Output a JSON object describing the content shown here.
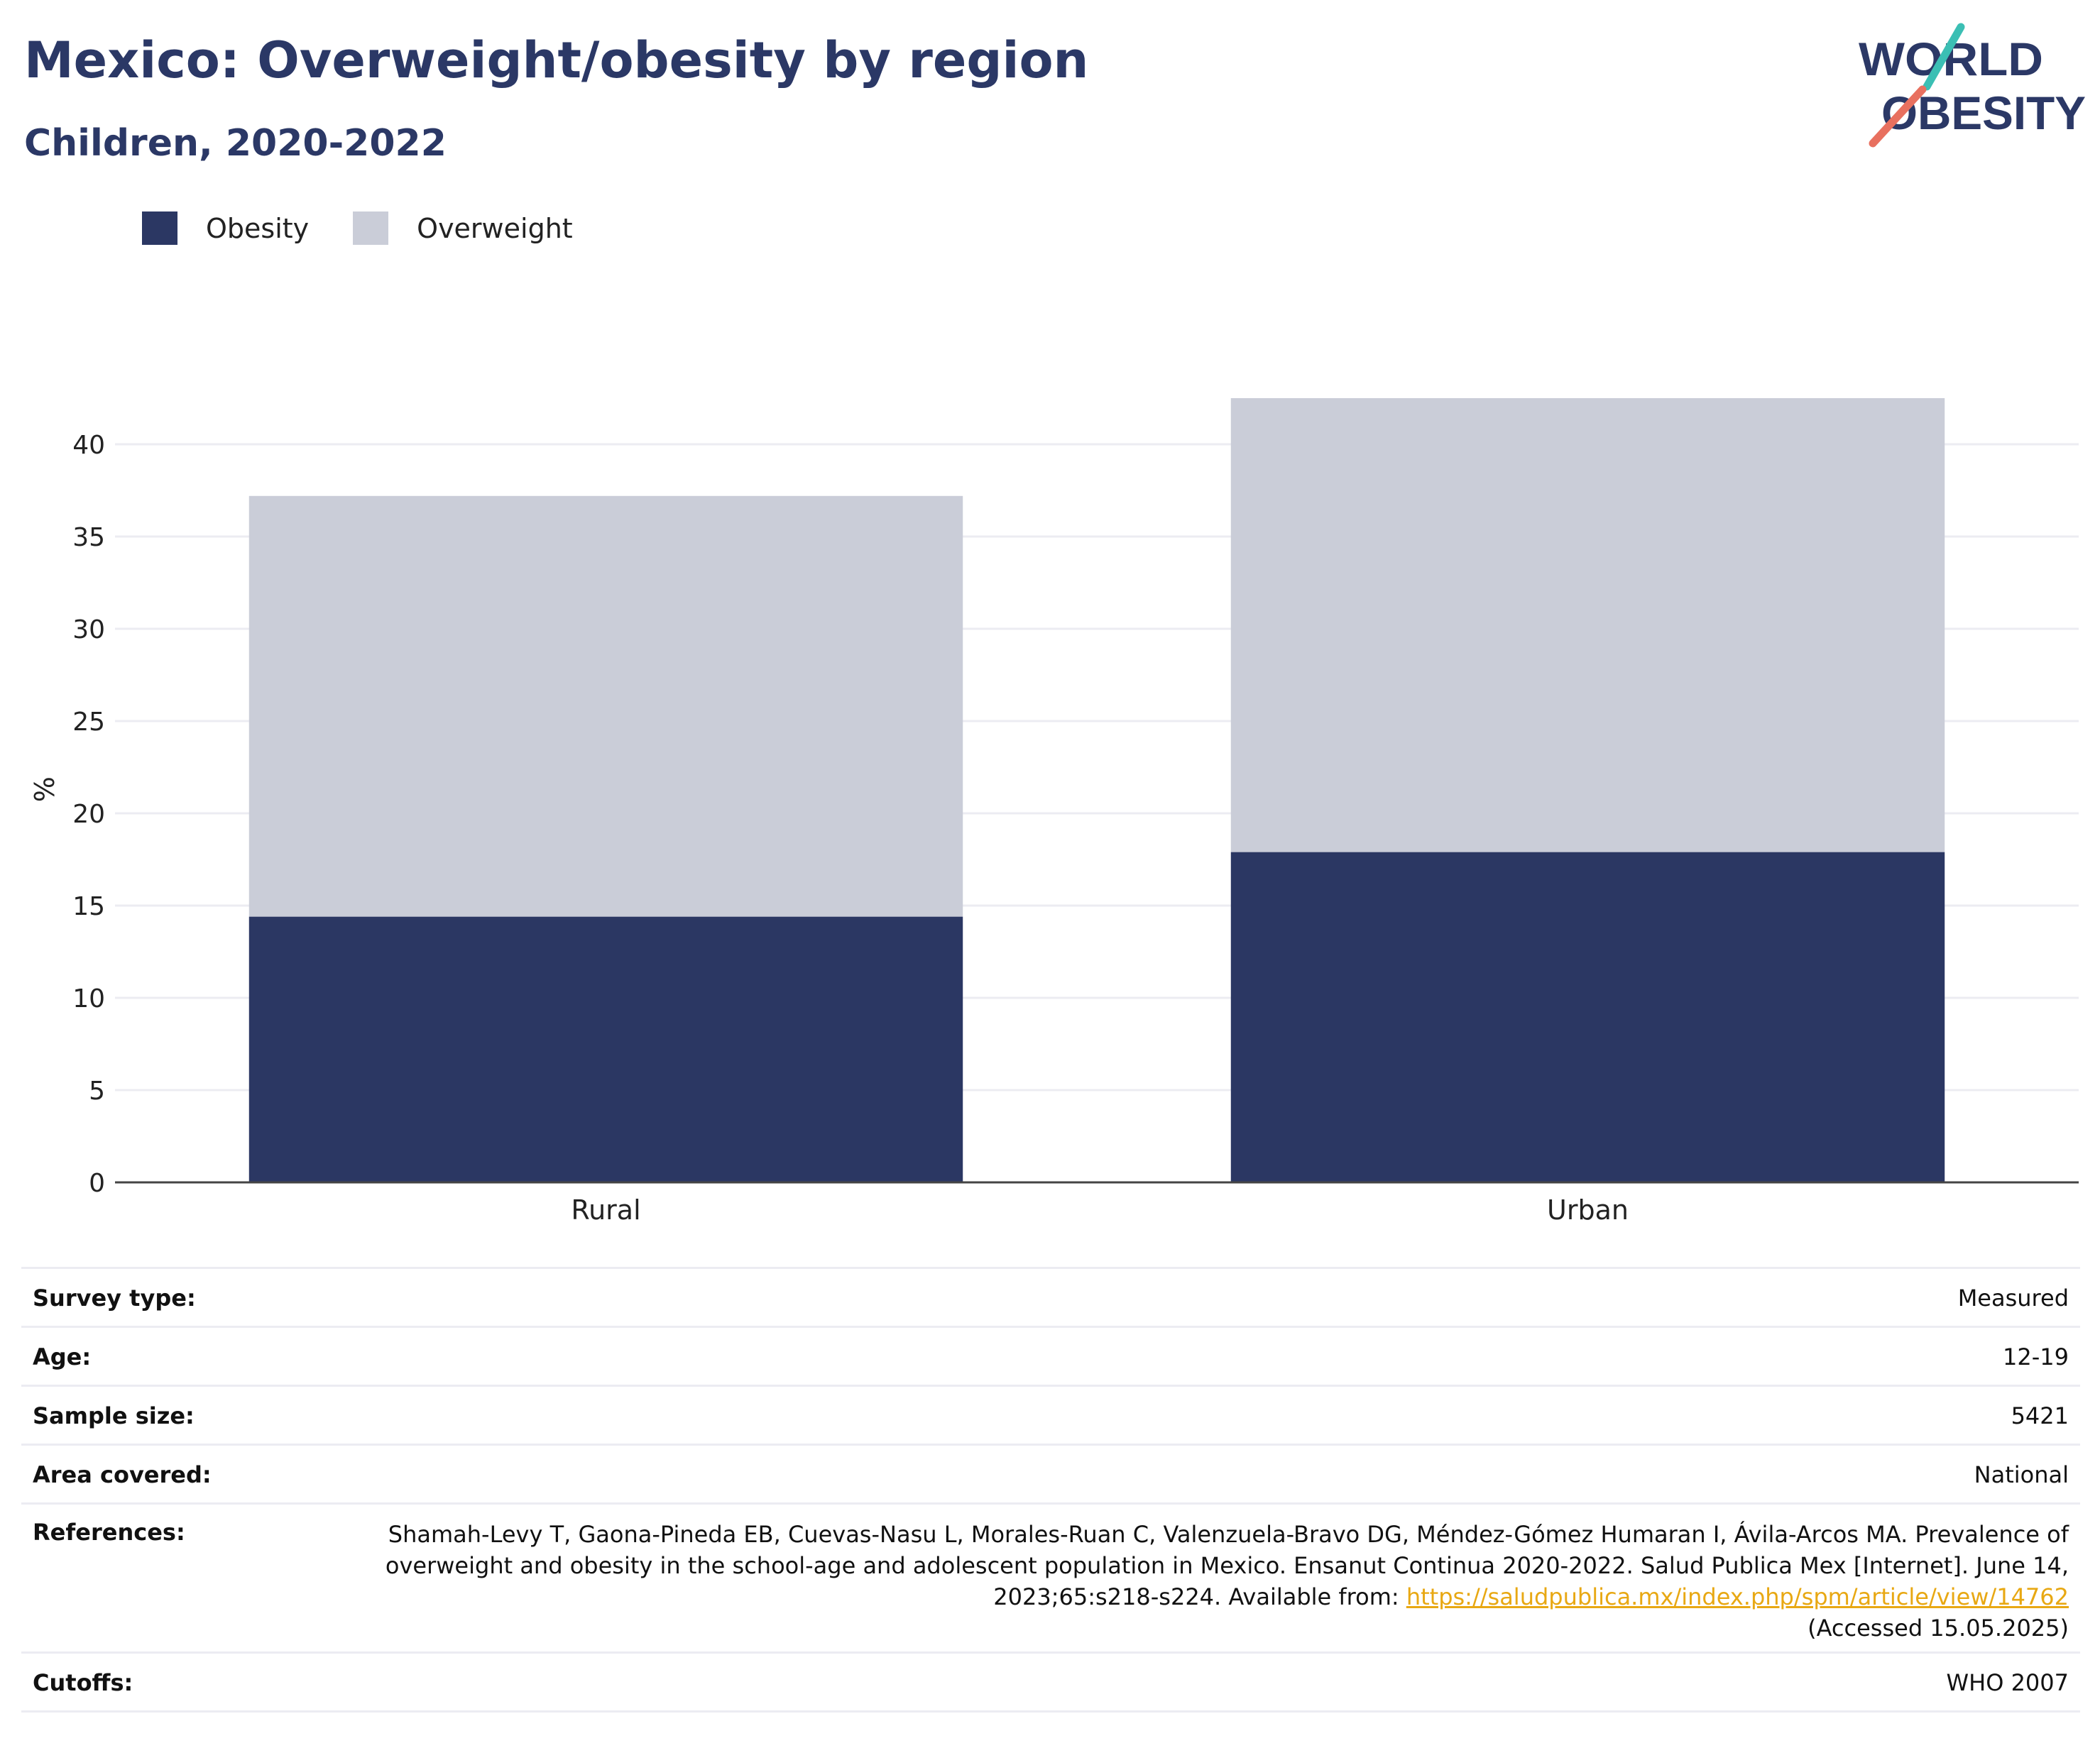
{
  "header": {
    "title": "Mexico: Overweight/obesity by region",
    "subtitle": "Children, 2020-2022"
  },
  "logo": {
    "line1": "WORLD",
    "line2": "OBESITY",
    "color": "#2b3866",
    "accent_teal": "#3bbfb4",
    "accent_coral": "#e8705f"
  },
  "legend": {
    "items": [
      {
        "label": "Obesity",
        "color": "#2b3763"
      },
      {
        "label": "Overweight",
        "color": "#cacdd8"
      }
    ]
  },
  "chart_data": {
    "type": "bar",
    "stacked": true,
    "categories": [
      "Rural",
      "Urban"
    ],
    "series": [
      {
        "name": "Obesity",
        "values": [
          14.4,
          17.9
        ],
        "color": "#2b3763"
      },
      {
        "name": "Overweight",
        "values": [
          22.8,
          24.6
        ],
        "color": "#cacdd8"
      }
    ],
    "ylabel": "%",
    "xlabel": "",
    "ylim": [
      0,
      42.6
    ],
    "yticks": [
      0,
      5,
      10,
      15,
      20,
      25,
      30,
      35,
      40
    ],
    "grid": true,
    "legend_position": "top-left"
  },
  "metadata": {
    "rows": [
      {
        "label": "Survey type:",
        "value": "Measured"
      },
      {
        "label": "Age:",
        "value": "12-19"
      },
      {
        "label": "Sample size:",
        "value": "5421"
      },
      {
        "label": "Area covered:",
        "value": "National"
      }
    ],
    "references": {
      "label": "References:",
      "text": "Shamah-Levy T, Gaona-Pineda EB, Cuevas-Nasu L, Morales-Ruan C, Valenzuela-Bravo DG, Méndez-Gómez Humaran I, Ávila-Arcos MA. Prevalence of overweight and obesity in the school-age and adolescent population in Mexico. Ensanut Continua 2020-2022. Salud Publica Mex [Internet]. June 14, 2023;65:s218-s224. Available from: ",
      "link": "https://saludpublica.mx/index.php/spm/article/view/14762",
      "accessed": "(Accessed 15.05.2025)"
    },
    "cutoffs": {
      "label": "Cutoffs:",
      "value": "WHO 2007"
    }
  }
}
